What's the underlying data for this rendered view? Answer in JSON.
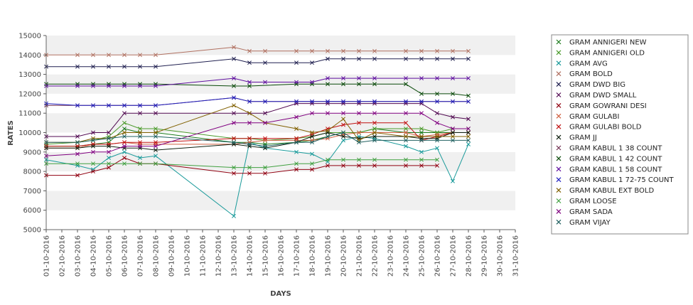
{
  "chart_data": {
    "type": "line",
    "title": "",
    "xlabel": "DAYS",
    "ylabel": "RATES",
    "ylim": [
      5000,
      15000
    ],
    "yticks": [
      "5000",
      "6000",
      "7000",
      "8000",
      "9000",
      "10000",
      "11000",
      "12000",
      "13000",
      "14000",
      "15000"
    ],
    "x": [
      "01-10-2016",
      "02-10-2016",
      "03-10-2016",
      "04-10-2016",
      "05-10-2016",
      "06-10-2016",
      "07-10-2016",
      "08-10-2016",
      "09-10-2016",
      "10-10-2016",
      "11-10-2016",
      "12-10-2016",
      "13-10-2016",
      "14-10-2016",
      "15-10-2016",
      "16-10-2016",
      "17-10-2016",
      "18-10-2016",
      "19-10-2016",
      "20-10-2016",
      "21-10-2016",
      "22-10-2016",
      "23-10-2016",
      "24-10-2016",
      "25-10-2016",
      "26-10-2016",
      "27-10-2016",
      "28-10-2016",
      "29-10-2016",
      "30-10-2016",
      "31-10-2016"
    ],
    "grid": "alternating horizontal bands",
    "legend_position": "right",
    "series": [
      {
        "name": "GRAM ANNIGERI NEW",
        "color": "#1a7a1a",
        "values": [
          9300,
          null,
          9300,
          9400,
          9500,
          10200,
          10000,
          10000,
          null,
          null,
          null,
          null,
          9500,
          9500,
          9400,
          null,
          9500,
          9600,
          9800,
          10000,
          10000,
          10200,
          null,
          10000,
          10000,
          10000,
          10000,
          10000,
          null,
          null,
          null
        ]
      },
      {
        "name": "GRAM ANNIGERI OLD",
        "color": "#4a9a2a",
        "values": [
          9400,
          null,
          9500,
          9600,
          9800,
          10500,
          10200,
          10200,
          null,
          null,
          null,
          null,
          9700,
          9700,
          9600,
          null,
          9700,
          9800,
          10000,
          10000,
          10000,
          10200,
          null,
          10200,
          10200,
          10000,
          10200,
          10200,
          null,
          null,
          null
        ]
      },
      {
        "name": "GRAM AVG",
        "color": "#1a9a9a",
        "values": [
          8600,
          null,
          8300,
          8100,
          8700,
          9000,
          8700,
          8800,
          null,
          null,
          null,
          null,
          5700,
          9500,
          9200,
          null,
          9000,
          8900,
          8500,
          9600,
          9800,
          9700,
          null,
          9300,
          9000,
          9200,
          7500,
          9400,
          null,
          null,
          null
        ]
      },
      {
        "name": "GRAM BOLD",
        "color": "#b07060",
        "values": [
          14000,
          null,
          14000,
          14000,
          14000,
          14000,
          14000,
          14000,
          null,
          null,
          null,
          null,
          14400,
          14200,
          14200,
          null,
          14200,
          14200,
          14200,
          14200,
          14200,
          14200,
          null,
          14200,
          14200,
          14200,
          14200,
          14200,
          null,
          null,
          null
        ]
      },
      {
        "name": "GRAM DWD BIG",
        "color": "#202050",
        "values": [
          13400,
          null,
          13400,
          13400,
          13400,
          13400,
          13400,
          13400,
          null,
          null,
          null,
          null,
          13800,
          13600,
          13600,
          null,
          13600,
          13600,
          13800,
          13800,
          13800,
          13800,
          null,
          13800,
          13800,
          13800,
          13800,
          13800,
          null,
          null,
          null
        ]
      },
      {
        "name": "GRAM DWD SMALL",
        "color": "#500850",
        "values": [
          9800,
          null,
          9800,
          10000,
          10000,
          11000,
          11000,
          11000,
          null,
          null,
          null,
          null,
          11000,
          11000,
          11000,
          null,
          11500,
          11500,
          11500,
          11500,
          11500,
          11500,
          null,
          11500,
          11500,
          11000,
          10800,
          10700,
          null,
          null,
          null
        ]
      },
      {
        "name": "GRAM GOWRANI DESI",
        "color": "#900010",
        "values": [
          7800,
          null,
          7800,
          8000,
          8200,
          8700,
          8400,
          8400,
          null,
          null,
          null,
          null,
          7900,
          7900,
          7900,
          null,
          8100,
          8100,
          8300,
          8300,
          8300,
          8300,
          null,
          8300,
          8300,
          8300,
          null,
          null,
          null,
          null,
          null
        ]
      },
      {
        "name": "GRAM GULABI",
        "color": "#d06040",
        "values": [
          9200,
          null,
          9200,
          9400,
          9400,
          9500,
          9400,
          9400,
          null,
          null,
          null,
          null,
          9400,
          9500,
          9600,
          null,
          9600,
          9600,
          9700,
          9900,
          10000,
          10000,
          null,
          10000,
          9800,
          9900,
          10000,
          10000,
          null,
          null,
          null
        ]
      },
      {
        "name": "GRAM GULABI BOLD",
        "color": "#c01010",
        "values": [
          9300,
          null,
          9300,
          9400,
          9400,
          9500,
          9500,
          9500,
          null,
          null,
          null,
          null,
          9700,
          9700,
          9700,
          null,
          9700,
          9900,
          10200,
          10400,
          10500,
          10500,
          null,
          10500,
          9600,
          9800,
          10000,
          10000,
          null,
          null,
          null
        ]
      },
      {
        "name": "GRAM JJ",
        "color": "#102010",
        "values": [
          9200,
          null,
          9200,
          9300,
          9300,
          9200,
          9200,
          9100,
          null,
          null,
          null,
          null,
          9400,
          9300,
          9200,
          null,
          9500,
          9800,
          10000,
          9800,
          9700,
          9800,
          null,
          9800,
          9700,
          9700,
          10000,
          10000,
          null,
          null,
          null
        ]
      },
      {
        "name": "GRAM KABUL 1 38 COUNT",
        "color": "#703050",
        "values": [
          11400,
          null,
          11400,
          11400,
          11400,
          11400,
          11400,
          11400,
          null,
          null,
          null,
          null,
          11800,
          11600,
          11600,
          null,
          11600,
          11600,
          11600,
          11600,
          11600,
          11600,
          null,
          11600,
          11600,
          11600,
          11600,
          11600,
          null,
          null,
          null
        ]
      },
      {
        "name": "GRAM KABUL 1 42 COUNT",
        "color": "#0a4a0a",
        "values": [
          12500,
          null,
          12500,
          12500,
          12500,
          12500,
          12500,
          12500,
          null,
          null,
          null,
          null,
          12400,
          12400,
          null,
          null,
          12500,
          12500,
          12500,
          12500,
          12500,
          12500,
          null,
          12500,
          12000,
          12000,
          12000,
          11900,
          null,
          null,
          null
        ]
      },
      {
        "name": "GRAM KABUL 1 58 COUNT",
        "color": "#6010a0",
        "values": [
          12400,
          null,
          12400,
          12400,
          12400,
          12400,
          12400,
          12400,
          null,
          null,
          null,
          null,
          12800,
          12600,
          12600,
          null,
          12600,
          12600,
          12800,
          12800,
          12800,
          12800,
          null,
          12800,
          12800,
          12800,
          12800,
          12800,
          null,
          null,
          null
        ]
      },
      {
        "name": "GRAM KABUL 1 72-75 COUNT",
        "color": "#2020c0",
        "values": [
          11500,
          null,
          11400,
          11400,
          11400,
          11400,
          11400,
          11400,
          null,
          null,
          null,
          null,
          11800,
          11600,
          11600,
          null,
          11600,
          11600,
          11600,
          11600,
          11600,
          11600,
          null,
          11600,
          11600,
          11600,
          11600,
          11600,
          null,
          null,
          null
        ]
      },
      {
        "name": "GRAM KABUL EXT BOLD",
        "color": "#806000",
        "values": [
          9500,
          null,
          9500,
          9700,
          9700,
          10000,
          10000,
          10000,
          null,
          null,
          null,
          null,
          11400,
          11000,
          10500,
          null,
          10200,
          10000,
          10100,
          10700,
          9600,
          10000,
          null,
          9800,
          9800,
          9800,
          9800,
          9800,
          null,
          null,
          null
        ]
      },
      {
        "name": "GRAM LOOSE",
        "color": "#40a040",
        "values": [
          8400,
          null,
          8400,
          8400,
          8400,
          8400,
          8400,
          8400,
          null,
          null,
          null,
          null,
          8200,
          8200,
          8200,
          null,
          8400,
          8400,
          8600,
          8600,
          8600,
          8600,
          null,
          8600,
          8600,
          8600,
          null,
          null,
          null,
          null,
          null
        ]
      },
      {
        "name": "GRAM SADA",
        "color": "#800080",
        "values": [
          8800,
          null,
          8900,
          9000,
          9000,
          9300,
          9300,
          9300,
          null,
          null,
          null,
          null,
          10500,
          10500,
          10500,
          null,
          10800,
          11000,
          11000,
          11000,
          11000,
          11000,
          null,
          11000,
          11000,
          10500,
          10200,
          10200,
          null,
          null,
          null
        ]
      },
      {
        "name": "GRAM VIJAY",
        "color": "#206060",
        "values": [
          9500,
          null,
          9500,
          9600,
          9700,
          9800,
          9800,
          9800,
          null,
          null,
          null,
          null,
          9500,
          9400,
          9300,
          null,
          9500,
          9500,
          9800,
          10000,
          9500,
          9600,
          null,
          9600,
          9600,
          9600,
          9600,
          9600,
          null,
          null,
          null
        ]
      }
    ]
  }
}
